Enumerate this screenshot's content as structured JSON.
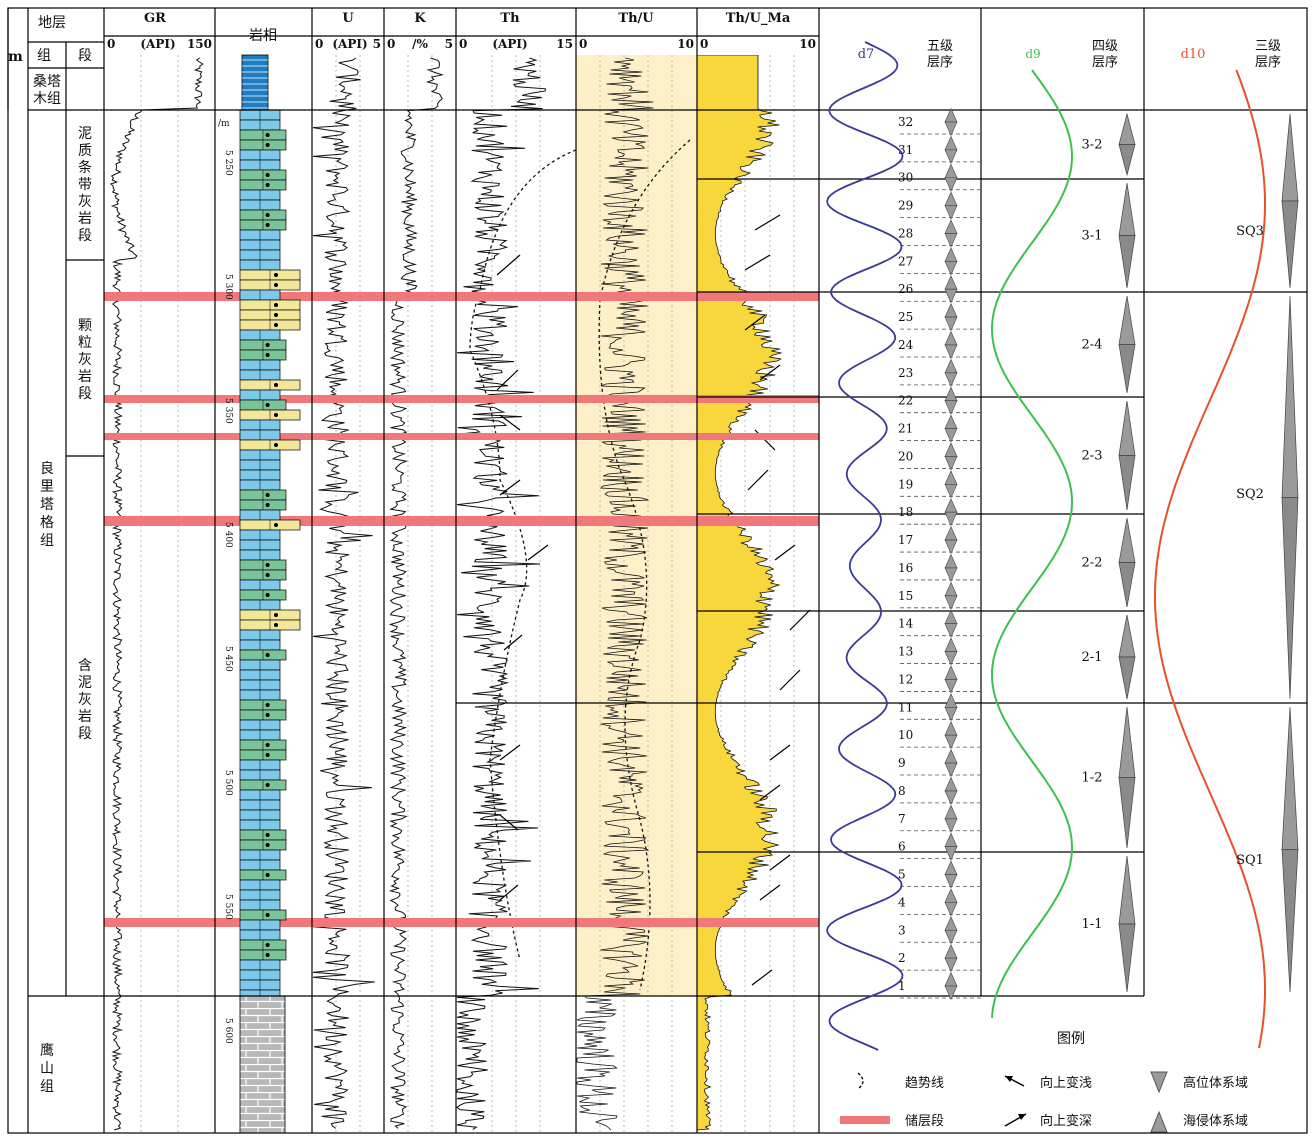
{
  "header": {
    "stratum": "地层",
    "formation": "组",
    "member": "段",
    "unit_m": "m",
    "lithofacies": "岩相",
    "gr": {
      "title": "GR",
      "min": "0",
      "unit": "(API)",
      "max": "150"
    },
    "u": {
      "title": "U",
      "min": "0",
      "unit": "(API)",
      "max": "5"
    },
    "k": {
      "title": "K",
      "min": "0",
      "unit": "/%",
      "max": "5"
    },
    "th": {
      "title": "Th",
      "min": "0",
      "unit": "(API)",
      "max": "15"
    },
    "thu": {
      "title": "Th/U",
      "min": "0",
      "max": "10"
    },
    "thuma": {
      "title": "Th/U_Ma",
      "min": "0",
      "max": "10"
    },
    "d7": "d7",
    "d9": "d9",
    "d10": "d10",
    "fifth_order": "五级层序",
    "fourth_order": "四级层序",
    "third_order": "三级层序"
  },
  "formations": [
    "桑塔木组",
    "良里塔格组",
    "鹰山组"
  ],
  "members": [
    "泥质条带灰岩段",
    "颗粒灰岩段",
    "含泥灰岩段"
  ],
  "depth_unit": "/m",
  "depth_ticks": [
    "5 250",
    "5 300",
    "5 350",
    "5 400",
    "5 450",
    "5 500",
    "5 550",
    "5 600"
  ],
  "fifth_order_cycles": [
    "32",
    "31",
    "30",
    "29",
    "28",
    "27",
    "26",
    "25",
    "24",
    "23",
    "22",
    "21",
    "20",
    "19",
    "18",
    "17",
    "16",
    "15",
    "14",
    "13",
    "12",
    "11",
    "10",
    "9",
    "8",
    "7",
    "6",
    "5",
    "4",
    "3",
    "2",
    "1"
  ],
  "fourth_order_sequences": [
    "3-2",
    "3-1",
    "2-4",
    "2-3",
    "2-2",
    "2-1",
    "1-2",
    "1-1"
  ],
  "third_order_sequences": [
    "SQ3",
    "SQ2",
    "SQ1"
  ],
  "colors": {
    "reservoir": "#f0787a",
    "d7_curve": "#3a3a9a",
    "d9_curve": "#3fbf4f",
    "d10_curve": "#e8502a",
    "thu_fill": "#fdf0c8",
    "thuma_fill": "#f7d73c",
    "limestone_blue": "#7ec8ea",
    "marl_green": "#7bc49a",
    "grain_yellow": "#f3e79a",
    "dolomite_gray": "#b8b8b8",
    "santamu_blue": "#1e7ec0"
  },
  "legend": {
    "title": "图例",
    "items": {
      "trend": "趋势线",
      "reservoir": "储层段",
      "shallowing": "向上变浅",
      "deepening": "向上变深",
      "hst": "高位体系域",
      "tst": "海侵体系域"
    }
  }
}
